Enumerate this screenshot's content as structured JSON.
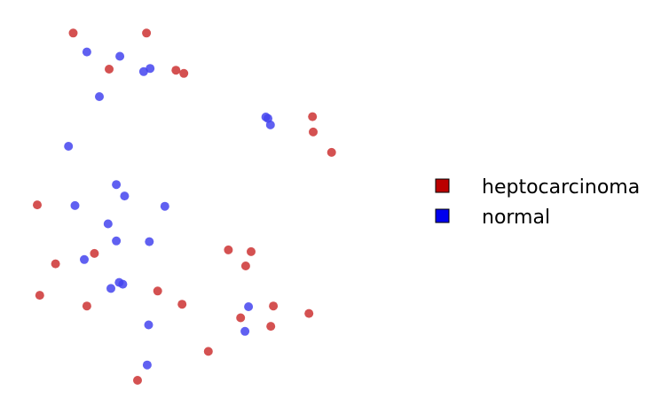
{
  "chart_data": {
    "type": "scatter",
    "title": "",
    "xlabel": "",
    "ylabel": "",
    "xlim": [
      0,
      100
    ],
    "ylim": [
      0,
      100
    ],
    "grid": false,
    "axes_visible": false,
    "legend_placement": "right",
    "series": [
      {
        "name": "heptocarcinoma",
        "color": "#cc3333",
        "swatch_color": "#bb0000",
        "points": [
          {
            "x": 13.7,
            "y": 97.2
          },
          {
            "x": 34.1,
            "y": 97.2
          },
          {
            "x": 23.7,
            "y": 87.1
          },
          {
            "x": 42.3,
            "y": 86.8
          },
          {
            "x": 44.5,
            "y": 85.9
          },
          {
            "x": 80.3,
            "y": 73.8
          },
          {
            "x": 80.5,
            "y": 69.5
          },
          {
            "x": 85.6,
            "y": 63.8
          },
          {
            "x": 3.7,
            "y": 49.1
          },
          {
            "x": 56.9,
            "y": 36.5
          },
          {
            "x": 63.2,
            "y": 36.0
          },
          {
            "x": 19.6,
            "y": 35.5
          },
          {
            "x": 8.8,
            "y": 32.6
          },
          {
            "x": 61.7,
            "y": 32.0
          },
          {
            "x": 37.2,
            "y": 25.0
          },
          {
            "x": 4.4,
            "y": 23.8
          },
          {
            "x": 44.0,
            "y": 21.3
          },
          {
            "x": 17.5,
            "y": 20.8
          },
          {
            "x": 69.4,
            "y": 20.8
          },
          {
            "x": 79.3,
            "y": 18.7
          },
          {
            "x": 60.3,
            "y": 17.5
          },
          {
            "x": 68.7,
            "y": 15.1
          },
          {
            "x": 51.3,
            "y": 8.1
          },
          {
            "x": 31.6,
            "y": 0.0
          }
        ]
      },
      {
        "name": "normal",
        "color": "#4444ee",
        "swatch_color": "#0000ee",
        "points": [
          {
            "x": 17.5,
            "y": 91.9
          },
          {
            "x": 26.7,
            "y": 90.7
          },
          {
            "x": 35.1,
            "y": 87.3
          },
          {
            "x": 33.3,
            "y": 86.4
          },
          {
            "x": 21.0,
            "y": 79.4
          },
          {
            "x": 67.3,
            "y": 73.7
          },
          {
            "x": 67.9,
            "y": 73.3
          },
          {
            "x": 68.6,
            "y": 71.5
          },
          {
            "x": 12.4,
            "y": 65.5
          },
          {
            "x": 25.7,
            "y": 54.8
          },
          {
            "x": 28.0,
            "y": 51.6
          },
          {
            "x": 14.2,
            "y": 48.9
          },
          {
            "x": 39.2,
            "y": 48.7
          },
          {
            "x": 23.4,
            "y": 43.8
          },
          {
            "x": 25.7,
            "y": 39.0
          },
          {
            "x": 34.9,
            "y": 38.8
          },
          {
            "x": 16.8,
            "y": 33.8
          },
          {
            "x": 26.5,
            "y": 27.4
          },
          {
            "x": 27.5,
            "y": 26.9
          },
          {
            "x": 24.2,
            "y": 25.7
          },
          {
            "x": 62.5,
            "y": 20.6
          },
          {
            "x": 34.7,
            "y": 15.5
          },
          {
            "x": 61.5,
            "y": 13.7
          },
          {
            "x": 34.3,
            "y": 4.3
          }
        ]
      }
    ]
  }
}
